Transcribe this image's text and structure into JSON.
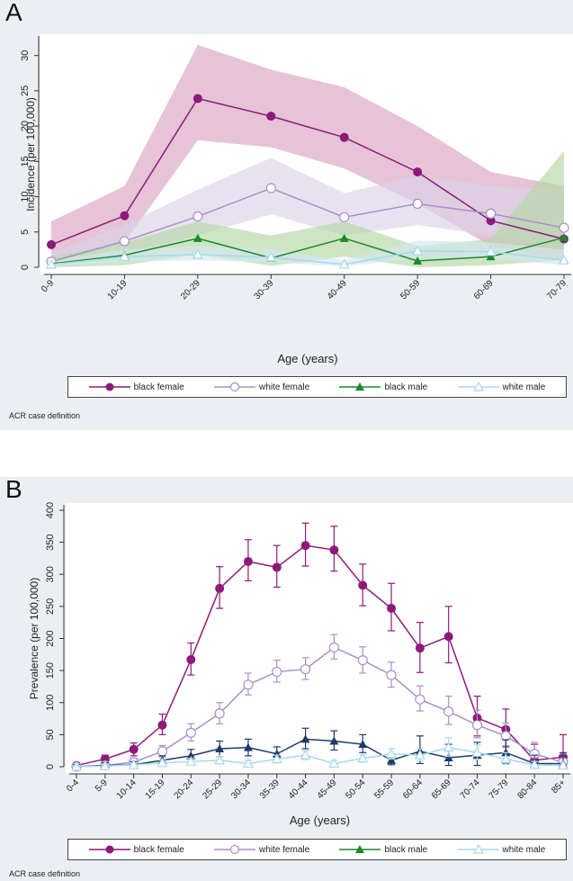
{
  "colors": {
    "black_female": "#8c1a7a",
    "white_female": "#a98fc8",
    "black_male": "#1a8a2c",
    "white_male": "#a8d8ea",
    "black_male_b": "#1f3a6a",
    "band_black_female": "#d9a3c2",
    "band_white_female": "#dcd3e8",
    "band_black_male": "#b4d7a4",
    "band_white_male": "#d2e7f0"
  },
  "legend": {
    "black_female": "black female",
    "white_female": "white female",
    "black_male": "black male",
    "white_male": "white male"
  },
  "chart_data": [
    {
      "type": "line",
      "panel_label": "A",
      "xlabel": "Age (years)",
      "ylabel": "Incidence (per 100,000)",
      "ylim": [
        0,
        32
      ],
      "yticks": [
        0,
        5,
        10,
        15,
        20,
        25,
        30
      ],
      "categories": [
        "0-9",
        "10-19",
        "20-29",
        "30-39",
        "40-49",
        "50-59",
        "60-69",
        "70-79"
      ],
      "footnote": "ACR case definition",
      "series": [
        {
          "name": "black female",
          "marker": "filled-circle",
          "values": [
            3.2,
            7.3,
            23.9,
            21.4,
            18.4,
            13.5,
            6.6,
            4.0
          ],
          "lower": [
            0.5,
            3.5,
            18.0,
            17.0,
            14.0,
            9.0,
            3.0,
            1.0
          ],
          "upper": [
            6.5,
            11.5,
            31.5,
            28.0,
            25.5,
            20.0,
            13.5,
            11.5
          ]
        },
        {
          "name": "white female",
          "marker": "open-circle",
          "values": [
            0.8,
            3.7,
            7.2,
            11.2,
            7.1,
            9.0,
            7.6,
            5.6
          ],
          "lower": [
            0.2,
            2.0,
            4.5,
            7.5,
            4.5,
            6.0,
            4.5,
            2.5
          ],
          "upper": [
            2.0,
            6.0,
            11.0,
            15.5,
            10.5,
            13.0,
            11.5,
            11.0
          ]
        },
        {
          "name": "black male",
          "marker": "filled-triangle",
          "values": [
            0.5,
            1.7,
            4.1,
            1.3,
            4.1,
            0.9,
            1.5,
            4.2
          ],
          "lower": [
            0.0,
            0.3,
            1.8,
            0.2,
            1.5,
            0.0,
            0.3,
            1.0
          ],
          "upper": [
            1.5,
            3.5,
            6.5,
            4.5,
            6.5,
            3.0,
            4.0,
            16.5
          ]
        },
        {
          "name": "white male",
          "marker": "open-triangle",
          "values": [
            0.4,
            1.5,
            1.8,
            1.4,
            0.4,
            2.3,
            2.2,
            1.0
          ],
          "lower": [
            0.1,
            0.8,
            1.0,
            0.7,
            0.1,
            1.3,
            1.2,
            0.3
          ],
          "upper": [
            1.0,
            2.5,
            3.0,
            2.5,
            1.0,
            3.8,
            3.5,
            2.5
          ]
        }
      ]
    },
    {
      "type": "line",
      "panel_label": "B",
      "xlabel": "Age (years)",
      "ylabel": "Prevalence (per 100,000)",
      "ylim": [
        0,
        400
      ],
      "yticks": [
        0,
        50,
        100,
        150,
        200,
        250,
        300,
        350,
        400
      ],
      "categories": [
        "0-4",
        "5-9",
        "10-14",
        "15-19",
        "20-24",
        "25-29",
        "30-34",
        "35-39",
        "40-44",
        "45-49",
        "50-54",
        "55-59",
        "60-64",
        "65-69",
        "70-74",
        "75-79",
        "80-84",
        "85+"
      ],
      "footnote": "ACR case definition",
      "series": [
        {
          "name": "black female",
          "marker": "filled-circle",
          "values": [
            2,
            12,
            27,
            65,
            167,
            278,
            320,
            311,
            345,
            338,
            283,
            247,
            185,
            203,
            76,
            58,
            10,
            15
          ],
          "lower": [
            0,
            5,
            17,
            50,
            143,
            247,
            290,
            280,
            313,
            305,
            251,
            212,
            147,
            162,
            48,
            32,
            0,
            0
          ],
          "upper": [
            6,
            18,
            37,
            82,
            193,
            312,
            354,
            345,
            380,
            375,
            316,
            286,
            225,
            250,
            110,
            90,
            35,
            50
          ]
        },
        {
          "name": "white female",
          "marker": "open-circle",
          "values": [
            0,
            2,
            7,
            24,
            53,
            83,
            128,
            148,
            152,
            186,
            166,
            143,
            105,
            86,
            65,
            48,
            20,
            7
          ],
          "lower": [
            0,
            0,
            2,
            15,
            40,
            67,
            112,
            132,
            136,
            168,
            146,
            124,
            87,
            66,
            45,
            30,
            8,
            0
          ],
          "upper": [
            3,
            6,
            13,
            33,
            67,
            100,
            146,
            166,
            170,
            206,
            187,
            163,
            126,
            110,
            88,
            68,
            38,
            20
          ]
        },
        {
          "name": "black male",
          "marker": "filled-triangle",
          "values": [
            0,
            2,
            3,
            10,
            17,
            28,
            30,
            20,
            43,
            40,
            35,
            10,
            24,
            14,
            18,
            22,
            5,
            5
          ],
          "lower": [
            0,
            0,
            0,
            4,
            8,
            16,
            17,
            9,
            28,
            26,
            22,
            3,
            5,
            2,
            2,
            5,
            0,
            0
          ],
          "upper": [
            3,
            6,
            8,
            17,
            27,
            40,
            43,
            31,
            60,
            56,
            50,
            18,
            48,
            35,
            38,
            42,
            18,
            22
          ]
        },
        {
          "name": "white male",
          "marker": "open-triangle",
          "values": [
            0,
            1,
            3,
            6,
            8,
            10,
            5,
            12,
            18,
            5,
            13,
            20,
            18,
            30,
            22,
            12,
            3,
            2
          ],
          "lower": [
            0,
            0,
            0,
            2,
            4,
            5,
            1,
            6,
            11,
            1,
            7,
            12,
            9,
            16,
            11,
            4,
            0,
            0
          ],
          "upper": [
            2,
            3,
            6,
            10,
            13,
            16,
            10,
            18,
            25,
            10,
            19,
            28,
            28,
            45,
            34,
            22,
            8,
            6
          ]
        }
      ]
    }
  ]
}
